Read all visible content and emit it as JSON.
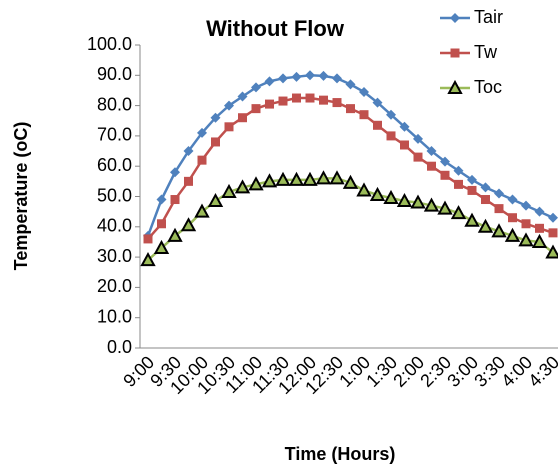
{
  "chart_data": {
    "type": "line",
    "title": "Without Flow",
    "x_label": "Time (Hours)",
    "y_label": "Temperature (oC)",
    "categories": [
      "9:00",
      null,
      "9:30",
      null,
      "10:00",
      null,
      "10:30",
      null,
      "11:00",
      null,
      "11:30",
      null,
      "12:00",
      null,
      "12:30",
      null,
      "1:00",
      null,
      "1:30",
      null,
      "2:00",
      null,
      "2:30",
      null,
      "3:00",
      null,
      "3:30",
      null,
      "4:00",
      null,
      "4:30"
    ],
    "series": [
      {
        "name": "Tair",
        "color": "#4f81bd",
        "marker": "diamond",
        "values": [
          37,
          49,
          58,
          65,
          71,
          76,
          80,
          83,
          86,
          88,
          89,
          89.5,
          90,
          89.8,
          89,
          87,
          84.5,
          81,
          77,
          73,
          69,
          65,
          61.5,
          58.5,
          55.5,
          53,
          51,
          49,
          47,
          45,
          43
        ]
      },
      {
        "name": "Tw",
        "color": "#c0504d",
        "marker": "square",
        "values": [
          36,
          41,
          49,
          55,
          62,
          68,
          73,
          76,
          79,
          80.5,
          81.5,
          82.5,
          82.5,
          81.8,
          81,
          79,
          77,
          73.5,
          70,
          67,
          63,
          60,
          57,
          54,
          52,
          49,
          46,
          43,
          41,
          39.5,
          38
        ]
      },
      {
        "name": "Toc",
        "color": "#9bbb59",
        "marker": "triangle",
        "values": [
          29,
          33,
          37,
          40.5,
          45,
          48.5,
          51.5,
          53,
          54,
          55,
          55.5,
          55.5,
          55.5,
          56,
          56,
          54.5,
          52,
          50.5,
          49.5,
          48.5,
          48,
          47,
          46,
          44.5,
          42,
          40,
          38.5,
          37,
          35.5,
          35,
          31.5
        ]
      }
    ],
    "ylim": [
      0,
      100
    ],
    "yticks": [
      {
        "value": 0,
        "label": "0.0"
      },
      {
        "value": 10,
        "label": "10.0"
      },
      {
        "value": 20,
        "label": "20.0"
      },
      {
        "value": 30,
        "label": "30.0"
      },
      {
        "value": 40,
        "label": "40.0"
      },
      {
        "value": 50,
        "label": "50.0"
      },
      {
        "value": 60,
        "label": "60.0"
      },
      {
        "value": 70,
        "label": "70.0"
      },
      {
        "value": 80,
        "label": "80.0"
      },
      {
        "value": 90,
        "label": "90.0"
      },
      {
        "value": 100,
        "label": "100.0"
      }
    ],
    "legend": "top-right"
  }
}
